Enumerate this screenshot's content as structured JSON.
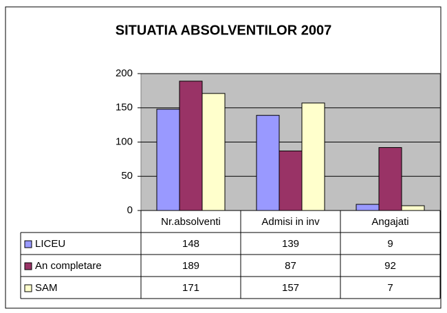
{
  "chart_data": {
    "type": "bar",
    "title": "SITUATIA ABSOLVENTILOR 2007",
    "categories": [
      "Nr.absolventi",
      "Admisi in inv",
      "Angajati"
    ],
    "series": [
      {
        "name": "LICEU",
        "color": "#9999ff",
        "values": [
          148,
          139,
          9
        ]
      },
      {
        "name": "An completare",
        "color": "#993366",
        "values": [
          189,
          87,
          92
        ]
      },
      {
        "name": "SAM",
        "color": "#ffffcc",
        "values": [
          171,
          157,
          7
        ]
      }
    ],
    "ylim": [
      0,
      200
    ],
    "yticks": [
      0,
      50,
      100,
      150,
      200
    ],
    "grid": true,
    "plot_background": "#c0c0c0"
  }
}
